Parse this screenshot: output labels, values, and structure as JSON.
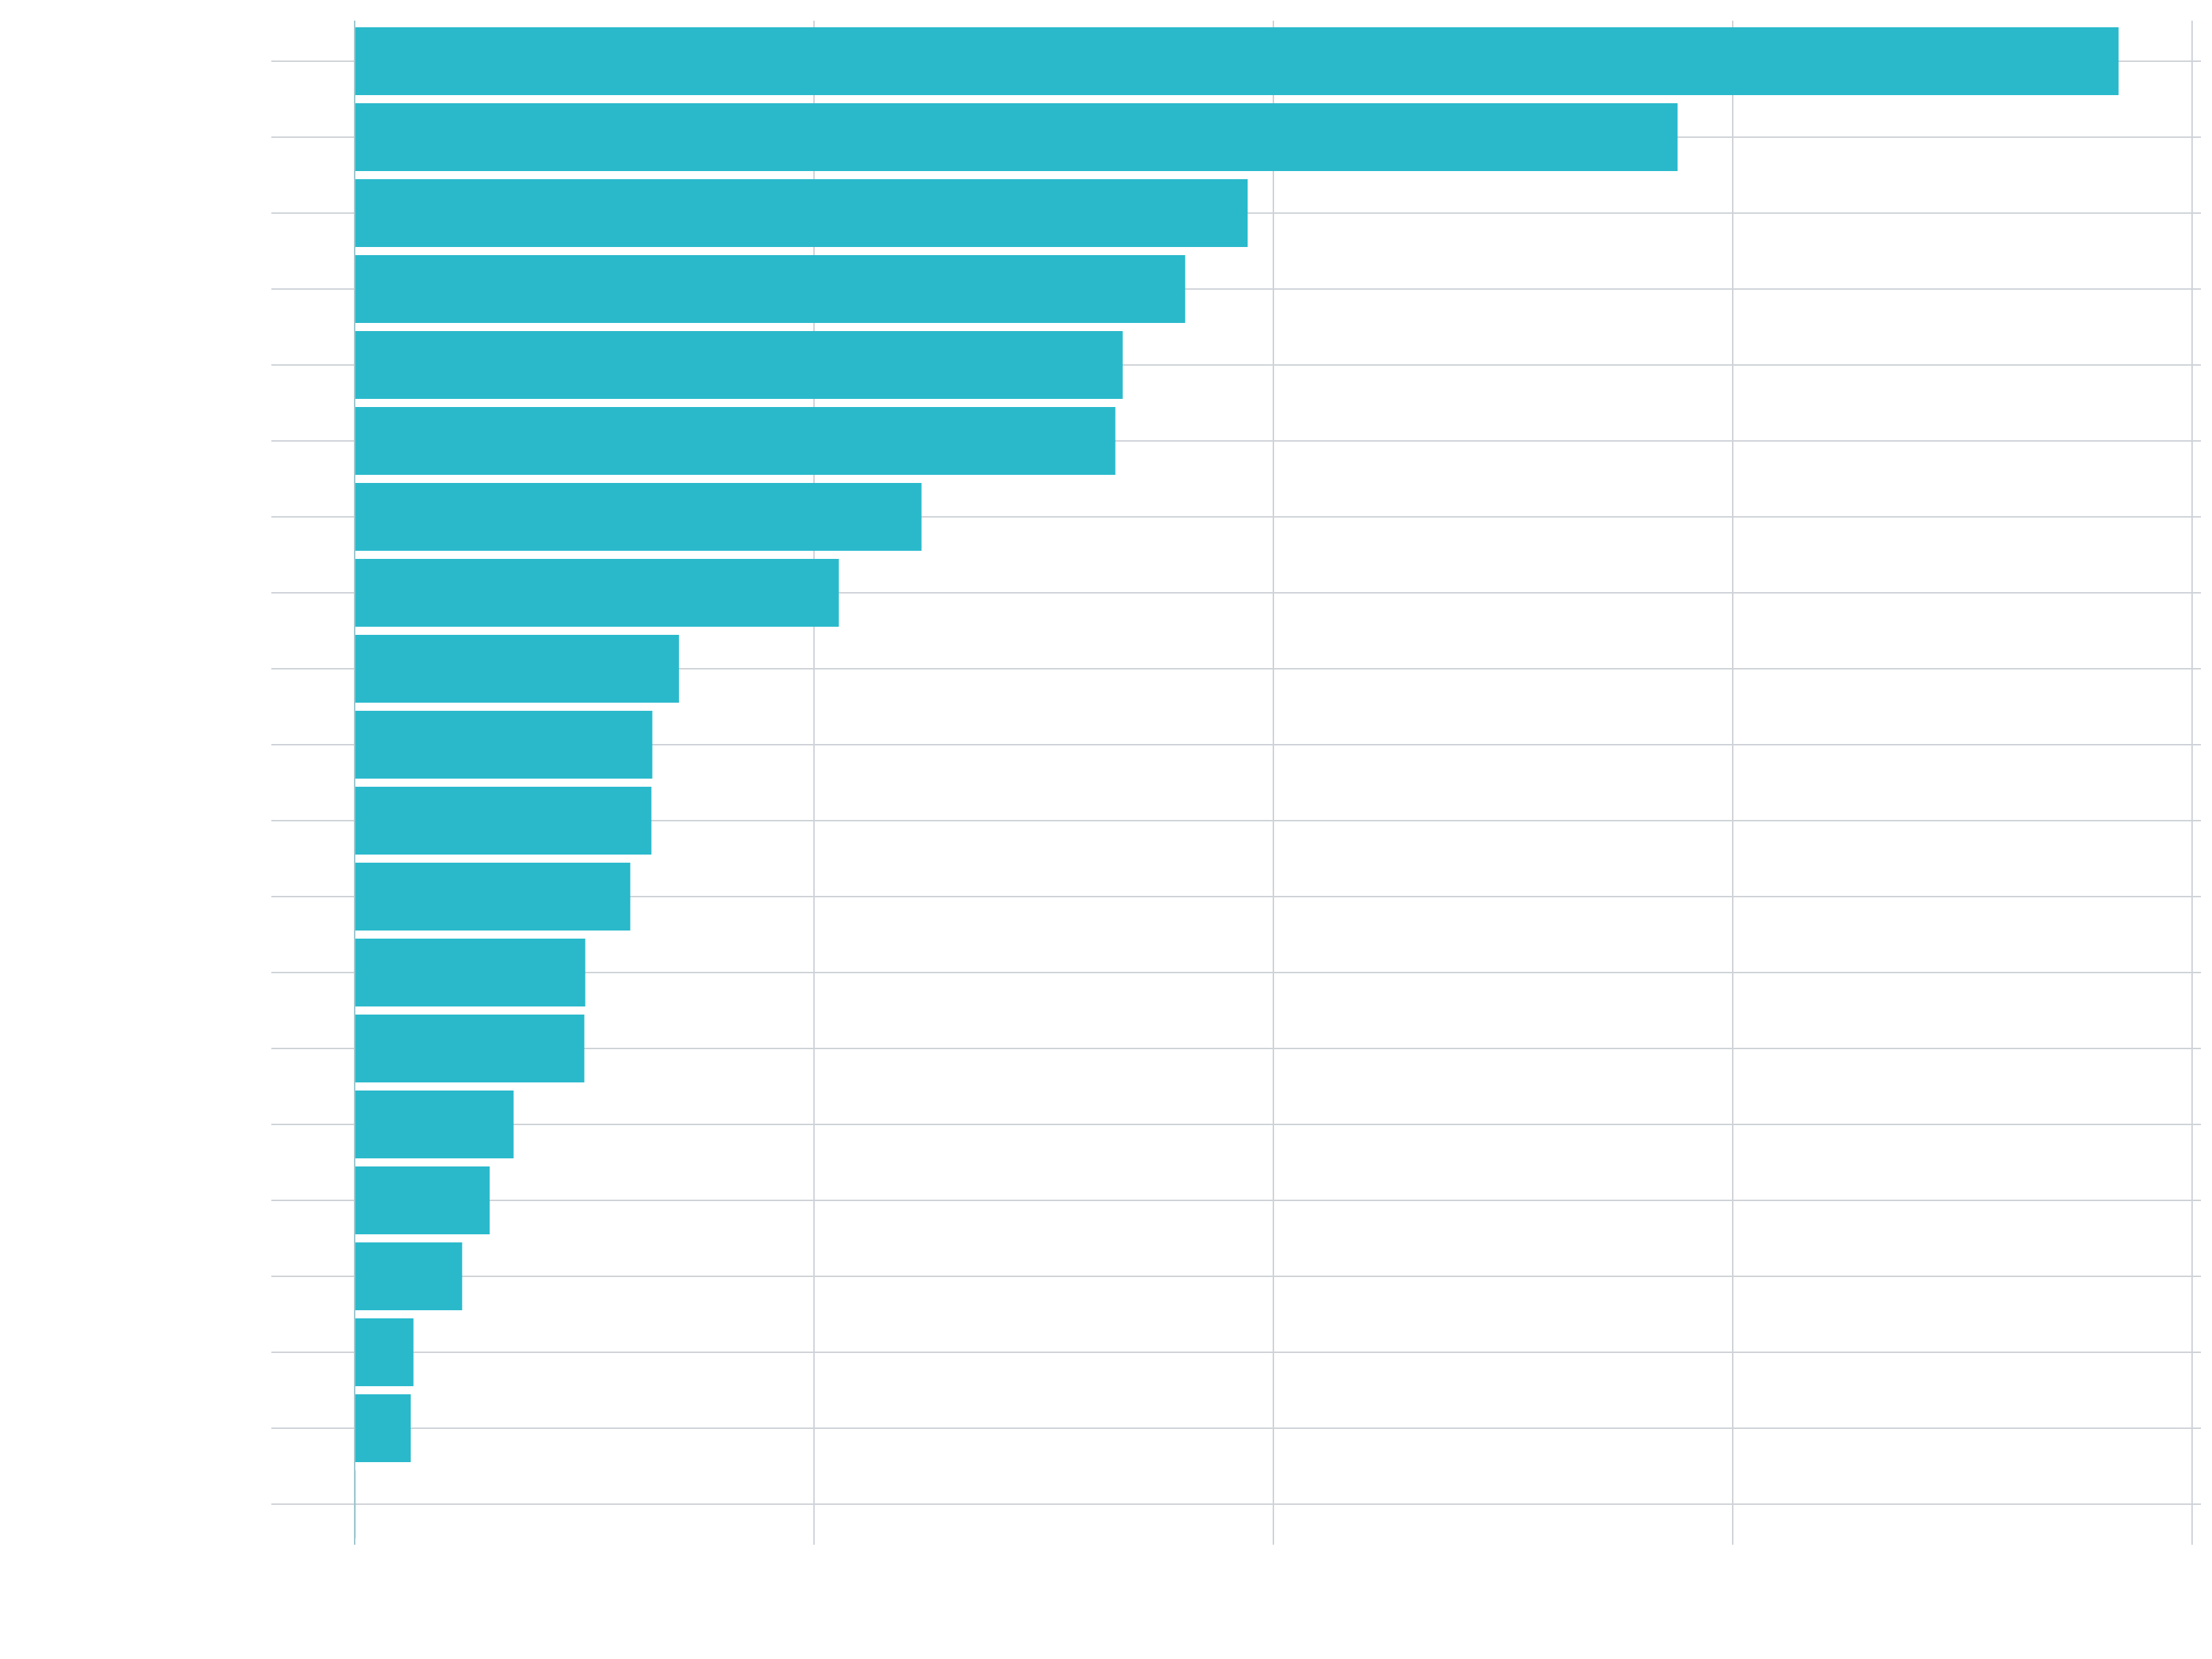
{
  "chart_data": {
    "type": "bar",
    "orientation": "horizontal",
    "title": "",
    "xlabel": "",
    "ylabel": "",
    "categories": [
      "",
      "",
      "",
      "",
      "",
      "",
      "",
      "",
      "",
      "",
      "",
      "",
      "",
      "",
      "",
      "",
      "",
      "",
      "",
      ""
    ],
    "values": [
      19.2,
      14.4,
      9.72,
      9.04,
      8.36,
      8.28,
      6.17,
      5.27,
      3.53,
      3.24,
      3.23,
      3.0,
      2.51,
      2.5,
      1.73,
      1.47,
      1.17,
      0.64,
      0.61,
      0.01
    ],
    "xlim": [
      0,
      20
    ],
    "xticks": [
      0,
      5,
      10,
      15,
      20
    ],
    "xtick_labels": [
      "",
      "",
      "",
      "",
      ""
    ],
    "grid": true,
    "bar_color": "#2ab9cb",
    "gridline_color": "#cfd3d8",
    "zero_line_color": "#9fc7cf",
    "background": "#ffffff"
  }
}
